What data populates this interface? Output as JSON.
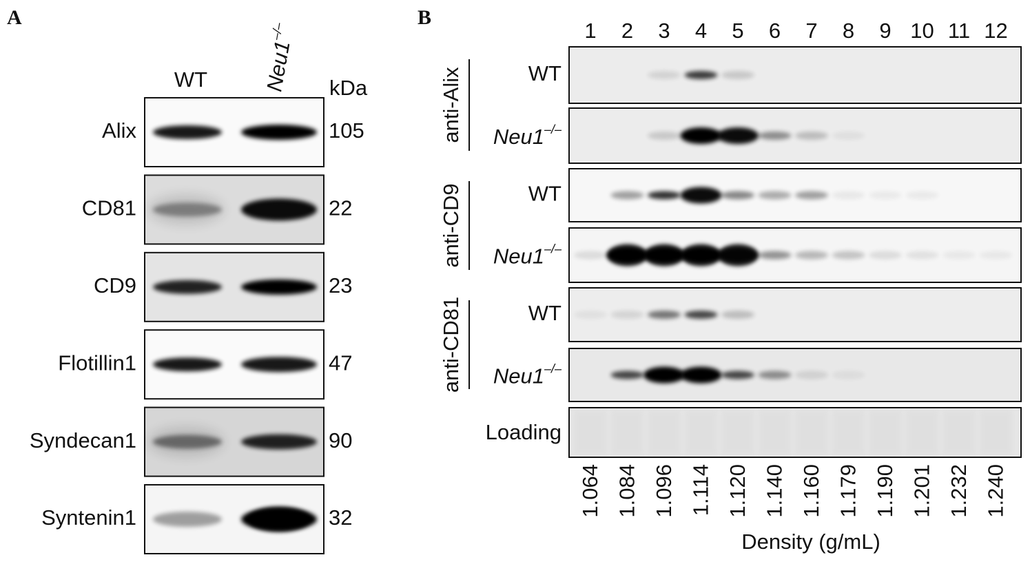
{
  "panel_a": {
    "label": "A",
    "columns": {
      "wt": "WT",
      "ko": "Neu1",
      "ko_superscript": "–/–"
    },
    "unit": "kDa",
    "rows": [
      {
        "protein": "Alix",
        "kda": 105
      },
      {
        "protein": "CD81",
        "kda": 22
      },
      {
        "protein": "CD9",
        "kda": 23
      },
      {
        "protein": "Flotillin1",
        "kda": 47
      },
      {
        "protein": "Syndecan1",
        "kda": 90
      },
      {
        "protein": "Syntenin1",
        "kda": 32
      }
    ]
  },
  "panel_b": {
    "label": "B",
    "fractions": [
      1,
      2,
      3,
      4,
      5,
      6,
      7,
      8,
      9,
      10,
      11,
      12
    ],
    "groups": [
      {
        "antibody": "anti-Alix",
        "rows": [
          {
            "genotype": "WT"
          },
          {
            "genotype": "Neu1",
            "superscript": "–/–"
          }
        ]
      },
      {
        "antibody": "anti-CD9",
        "rows": [
          {
            "genotype": "WT"
          },
          {
            "genotype": "Neu1",
            "superscript": "–/–"
          }
        ]
      },
      {
        "antibody": "anti-CD81",
        "rows": [
          {
            "genotype": "WT"
          },
          {
            "genotype": "Neu1",
            "superscript": "–/–"
          }
        ]
      }
    ],
    "loading": "Loading",
    "densities": [
      "1.064",
      "1.084",
      "1.096",
      "1.114",
      "1.120",
      "1.140",
      "1.160",
      "1.179",
      "1.190",
      "1.201",
      "1.232",
      "1.240"
    ],
    "x_label": "Density (g/mL)"
  }
}
